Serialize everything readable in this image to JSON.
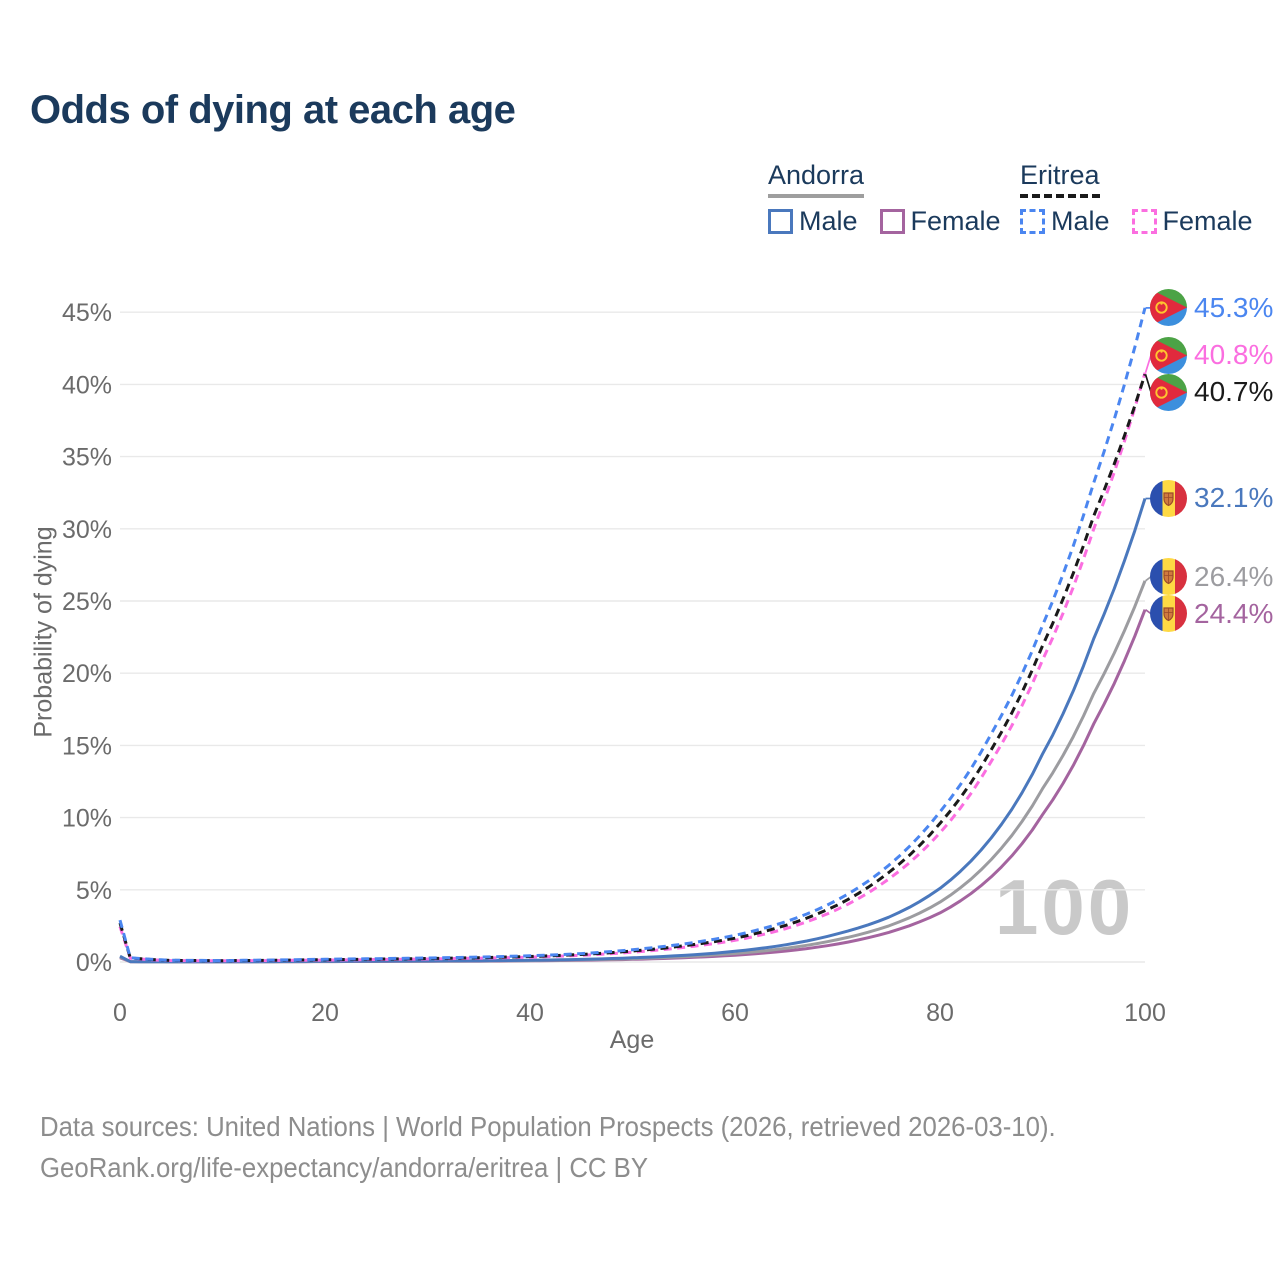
{
  "title": "Odds of dying at each age",
  "watermark": "100",
  "legend": {
    "groups": [
      {
        "label": "Andorra",
        "underline_color": "#9e9e9e",
        "underline_style": "solid",
        "items": [
          {
            "label": "Male",
            "color": "#4a78bd",
            "dashed": false
          },
          {
            "label": "Female",
            "color": "#a4649f",
            "dashed": false
          }
        ]
      },
      {
        "label": "Eritrea",
        "underline_color": "#1a1a1a",
        "underline_style": "dashed",
        "items": [
          {
            "label": "Male",
            "color": "#4b86f0",
            "dashed": true
          },
          {
            "label": "Female",
            "color": "#fb6ee0",
            "dashed": true
          }
        ]
      }
    ]
  },
  "chart_data": {
    "type": "line",
    "title": "Odds of dying at each age",
    "xlabel": "Age",
    "ylabel": "Probability of dying",
    "xlim": [
      0,
      100
    ],
    "ylim": [
      0,
      45
    ],
    "x_ticks": [
      0,
      20,
      40,
      60,
      80,
      100
    ],
    "y_ticks": [
      "0%",
      "5%",
      "10%",
      "15%",
      "20%",
      "25%",
      "30%",
      "35%",
      "40%",
      "45%"
    ],
    "y_tick_values": [
      0,
      5,
      10,
      15,
      20,
      25,
      30,
      35,
      40,
      45
    ],
    "grid": true,
    "legend_position": "top-right",
    "x": [
      0,
      1,
      5,
      10,
      15,
      20,
      25,
      30,
      35,
      40,
      45,
      50,
      55,
      60,
      65,
      70,
      75,
      80,
      85,
      90,
      95,
      100
    ],
    "series": [
      {
        "name": "Andorra Female",
        "color": "#a4649f",
        "dash": false,
        "flag_icon": "andorra-flag-icon",
        "end_label": "24.4%",
        "end_value": 24.4,
        "values": [
          0.3,
          0.022,
          0.009,
          0.01,
          0.016,
          0.03,
          0.036,
          0.045,
          0.055,
          0.08,
          0.12,
          0.185,
          0.295,
          0.47,
          0.76,
          1.25,
          2.05,
          3.4,
          5.9,
          10.2,
          16.5,
          24.4
        ]
      },
      {
        "name": "Andorra Both sexes",
        "color": "#9c9ca0",
        "dash": false,
        "flag_icon": "andorra-flag-icon",
        "end_label": "26.4%",
        "end_value": 26.4,
        "values": [
          0.35,
          0.026,
          0.01,
          0.011,
          0.022,
          0.042,
          0.05,
          0.058,
          0.07,
          0.1,
          0.15,
          0.23,
          0.37,
          0.59,
          0.95,
          1.55,
          2.5,
          4.15,
          7.1,
          12.0,
          18.6,
          26.4
        ]
      },
      {
        "name": "Andorra Male",
        "color": "#4a78bd",
        "dash": false,
        "flag_icon": "andorra-flag-icon",
        "end_label": "32.1%",
        "end_value": 32.1,
        "values": [
          0.4,
          0.03,
          0.012,
          0.013,
          0.03,
          0.055,
          0.065,
          0.075,
          0.09,
          0.12,
          0.18,
          0.29,
          0.46,
          0.74,
          1.2,
          1.95,
          3.1,
          5.1,
          8.6,
          14.4,
          22.4,
          32.1
        ]
      },
      {
        "name": "Eritrea Female",
        "color": "#fb6ee0",
        "dash": true,
        "flag_icon": "eritrea-flag-icon",
        "end_label": "40.8%",
        "end_value": 40.8,
        "values": [
          2.45,
          0.26,
          0.1,
          0.08,
          0.105,
          0.135,
          0.17,
          0.21,
          0.265,
          0.335,
          0.465,
          0.68,
          1.01,
          1.5,
          2.32,
          3.65,
          5.75,
          8.95,
          13.9,
          20.9,
          30.0,
          40.8
        ]
      },
      {
        "name": "Eritrea Both sexes",
        "color": "#1a1a1a",
        "dash": true,
        "flag_icon": "eritrea-flag-icon",
        "end_label": "40.7%",
        "end_value": 40.7,
        "values": [
          2.7,
          0.28,
          0.11,
          0.09,
          0.12,
          0.16,
          0.2,
          0.24,
          0.3,
          0.38,
          0.52,
          0.76,
          1.12,
          1.65,
          2.55,
          3.95,
          6.2,
          9.6,
          14.7,
          21.9,
          30.9,
          40.7
        ]
      },
      {
        "name": "Eritrea Male",
        "color": "#4b86f0",
        "dash": true,
        "flag_icon": "eritrea-flag-icon",
        "end_label": "45.3%",
        "end_value": 45.3,
        "values": [
          2.9,
          0.3,
          0.12,
          0.1,
          0.14,
          0.19,
          0.23,
          0.28,
          0.34,
          0.43,
          0.58,
          0.85,
          1.25,
          1.85,
          2.8,
          4.3,
          6.7,
          10.4,
          15.8,
          23.3,
          33.2,
          45.3
        ]
      }
    ]
  },
  "footer": {
    "line1": "Data sources: United Nations | World Population Prospects (2026, retrieved 2026-03-10).",
    "line2": "GeoRank.org/life-expectancy/andorra/eritrea | CC BY"
  }
}
